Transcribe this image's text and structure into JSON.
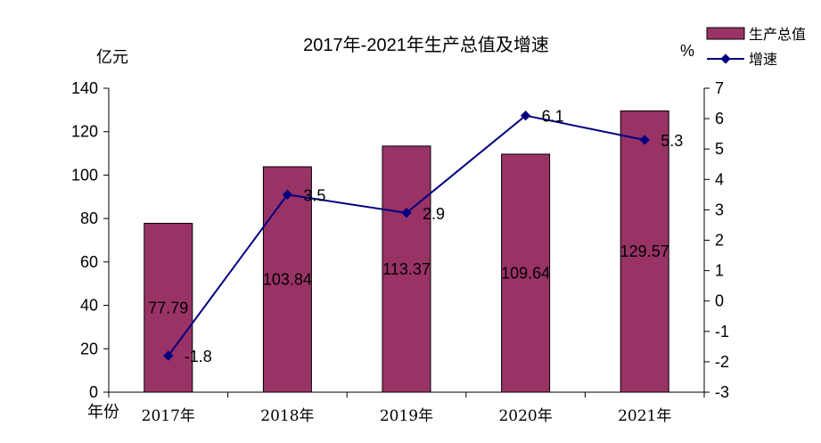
{
  "chart_data": {
    "type": "bar",
    "title": "2017年-2021年生产总值及增速",
    "left_unit": "亿元",
    "right_unit": "%",
    "x_unit": "年份",
    "categories": [
      "2017年",
      "2018年",
      "2019年",
      "2020年",
      "2021年"
    ],
    "series": [
      {
        "name": "生产总值",
        "type": "bar",
        "axis": "left",
        "color": "#993366",
        "values": [
          77.79,
          103.84,
          113.37,
          109.64,
          129.57
        ],
        "labels": [
          "77.79",
          "103.84",
          "113.37",
          "109.64",
          "129.57"
        ]
      },
      {
        "name": "增速",
        "type": "line",
        "axis": "right",
        "color": "#000080",
        "values": [
          -1.8,
          3.5,
          2.9,
          6.1,
          5.3
        ],
        "labels": [
          "-1.8",
          "3.5",
          "2.9",
          "6.1",
          "5.3"
        ]
      }
    ],
    "y_left": {
      "min": 0,
      "max": 140,
      "ticks": [
        "0",
        "20",
        "40",
        "60",
        "80",
        "100",
        "120",
        "140"
      ]
    },
    "y_right": {
      "min": -3,
      "max": 7,
      "ticks": [
        "-3",
        "-2",
        "-1",
        "0",
        "1",
        "2",
        "3",
        "4",
        "5",
        "6",
        "7"
      ]
    },
    "grid": false,
    "legend_position": "top-right"
  }
}
